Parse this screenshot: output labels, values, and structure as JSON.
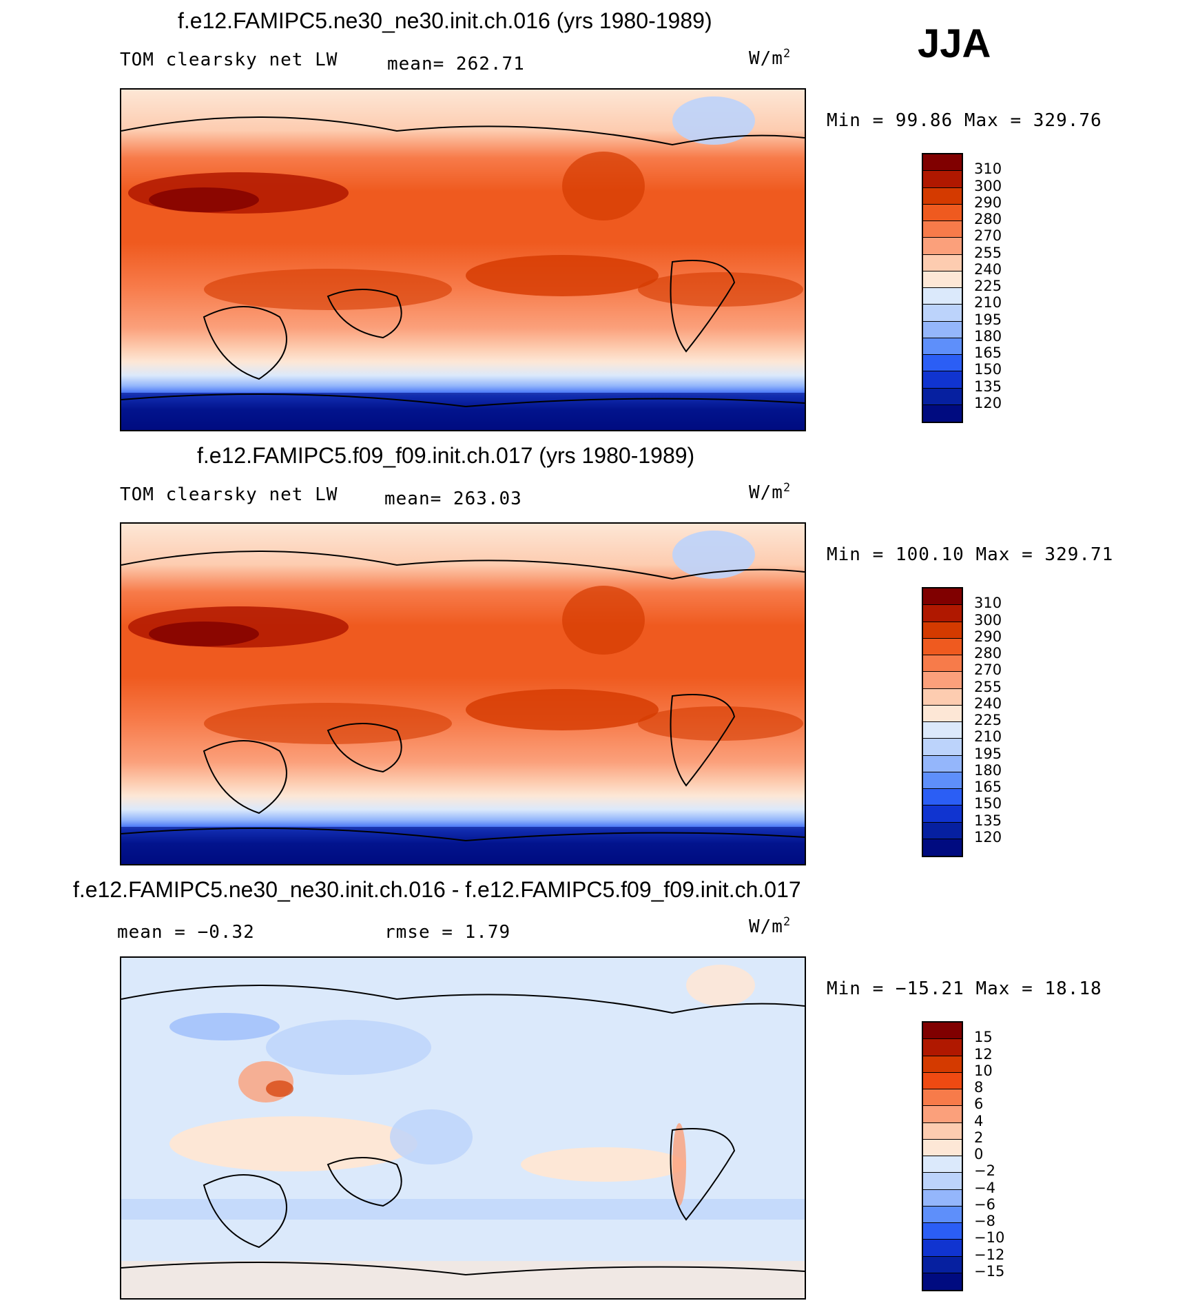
{
  "season": "JJA",
  "units_base": "W/m",
  "units_exp": "2",
  "chart_data": [
    {
      "type": "heatmap",
      "title": "f.e12.FAMIPC5.ne30_ne30.init.ch.016 (yrs 1980-1989)",
      "variable": "TOM clearsky net LW",
      "mean_text": "mean= 262.71",
      "minmax_text": "Min =   99.86 Max = 329.76",
      "min": 99.86,
      "max": 329.76,
      "levels": [
        "310",
        "300",
        "290",
        "280",
        "270",
        "255",
        "240",
        "225",
        "210",
        "195",
        "180",
        "165",
        "150",
        "135",
        "120"
      ],
      "colors": [
        "#800000",
        "#b01800",
        "#d43a00",
        "#ef5a1f",
        "#f77b4a",
        "#fba07b",
        "#fdccb0",
        "#fde7d6",
        "#dbe9fb",
        "#bcd3fb",
        "#94b6fb",
        "#5e8ffa",
        "#2b5ef5",
        "#1034d0",
        "#0620a0",
        "#000b80"
      ]
    },
    {
      "type": "heatmap",
      "title": "f.e12.FAMIPC5.f09_f09.init.ch.017 (yrs 1980-1989)",
      "variable": "TOM clearsky net LW",
      "mean_text": "mean= 263.03",
      "minmax_text": "Min = 100.10 Max = 329.71",
      "min": 100.1,
      "max": 329.71,
      "levels": [
        "310",
        "300",
        "290",
        "280",
        "270",
        "255",
        "240",
        "225",
        "210",
        "195",
        "180",
        "165",
        "150",
        "135",
        "120"
      ],
      "colors": [
        "#800000",
        "#b01800",
        "#d43a00",
        "#ef5a1f",
        "#f77b4a",
        "#fba07b",
        "#fdccb0",
        "#fde7d6",
        "#dbe9fb",
        "#bcd3fb",
        "#94b6fb",
        "#5e8ffa",
        "#2b5ef5",
        "#1034d0",
        "#0620a0",
        "#000b80"
      ]
    },
    {
      "type": "heatmap",
      "title": "f.e12.FAMIPC5.ne30_ne30.init.ch.016 - f.e12.FAMIPC5.f09_f09.init.ch.017",
      "mean_text": "mean =   −0.32",
      "rmse_text": "rmse =    1.79",
      "minmax_text": "Min = −15.21 Max =   18.18",
      "min": -15.21,
      "max": 18.18,
      "mean": -0.32,
      "rmse": 1.79,
      "levels": [
        "15",
        "12",
        "10",
        "8",
        "6",
        "4",
        "2",
        "0",
        "−2",
        "−4",
        "−6",
        "−8",
        "−10",
        "−12",
        "−15"
      ],
      "colors": [
        "#800000",
        "#b01800",
        "#d43a00",
        "#ef4a12",
        "#f77b4a",
        "#fba07b",
        "#fdccb0",
        "#fde7d6",
        "#dbe9fb",
        "#bcd3fb",
        "#94b6fb",
        "#5e8ffa",
        "#2b5ef5",
        "#1034d0",
        "#0620a0",
        "#000b80"
      ]
    }
  ]
}
